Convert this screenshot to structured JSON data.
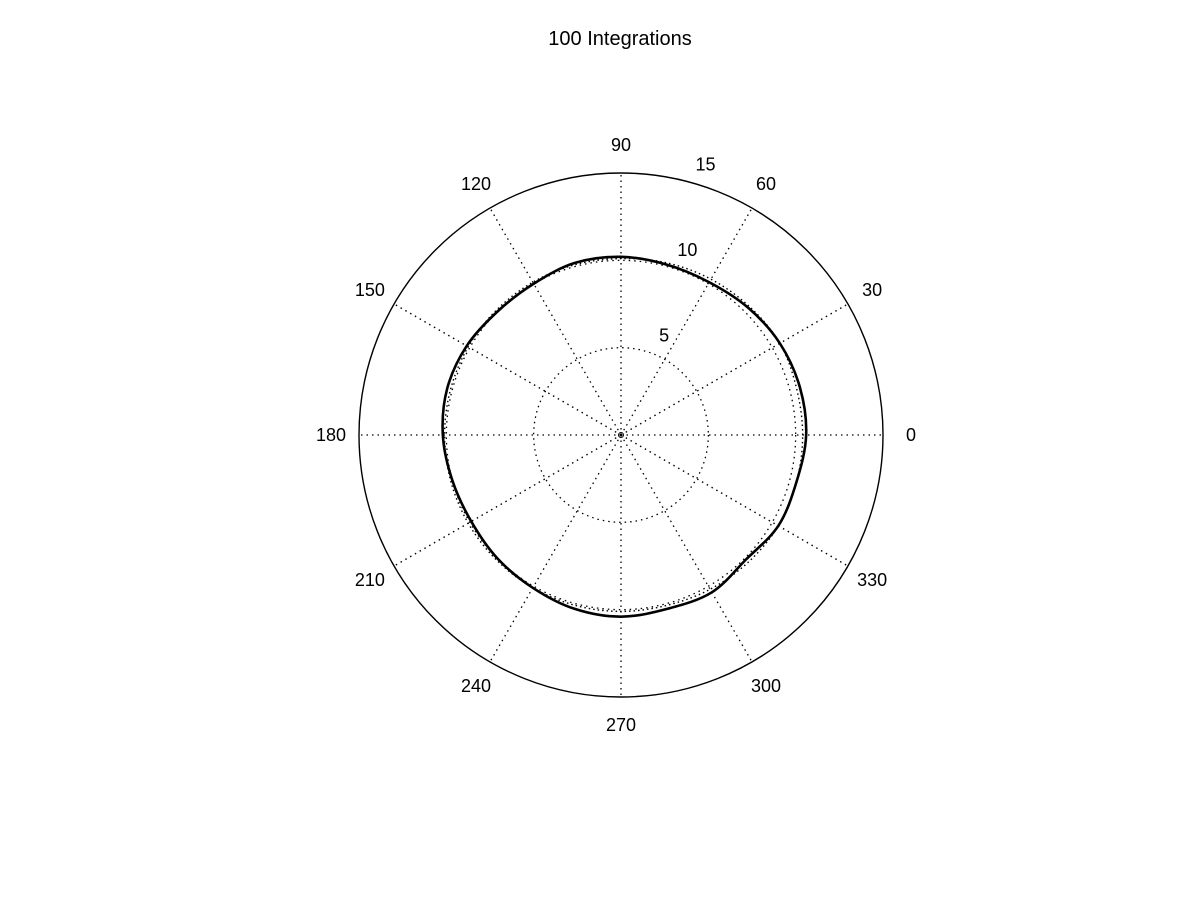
{
  "chart_data": {
    "type": "polar-line",
    "title": "100 Integrations",
    "theta_unit": "degrees",
    "r_max": 15,
    "r_ticks": [
      5,
      10,
      15
    ],
    "theta_ticks": [
      0,
      30,
      60,
      90,
      120,
      150,
      180,
      210,
      240,
      270,
      300,
      330
    ],
    "grid": true,
    "series": [
      {
        "style": "solid",
        "theta": [
          0,
          15,
          30,
          45,
          60,
          75,
          90,
          105,
          120,
          135,
          150,
          165,
          180,
          195,
          210,
          225,
          240,
          255,
          270,
          285,
          300,
          315,
          330,
          345,
          360
        ],
        "r": [
          10.6,
          10.6,
          10.5,
          10.3,
          10.1,
          10.1,
          10.2,
          10.2,
          10.0,
          10.0,
          10.2,
          10.3,
          10.2,
          10.0,
          9.9,
          10.0,
          10.1,
          10.3,
          10.4,
          10.3,
          10.4,
          10.1,
          10.4,
          10.4,
          10.6
        ]
      },
      {
        "style": "dotted",
        "theta": [
          0,
          15,
          30,
          45,
          60,
          75,
          90,
          105,
          120,
          135,
          150,
          165,
          180,
          195,
          210,
          225,
          240,
          255,
          270,
          285,
          300,
          315,
          330,
          345,
          360
        ],
        "r": [
          10.4,
          10.4,
          10.5,
          10.4,
          10.3,
          10.2,
          10.1,
          10.1,
          10.1,
          10.1,
          10.1,
          10.1,
          10.1,
          10.1,
          10.1,
          10.1,
          10.1,
          10.1,
          10.1,
          10.1,
          10.2,
          10.3,
          10.4,
          10.4,
          10.4
        ]
      }
    ]
  }
}
